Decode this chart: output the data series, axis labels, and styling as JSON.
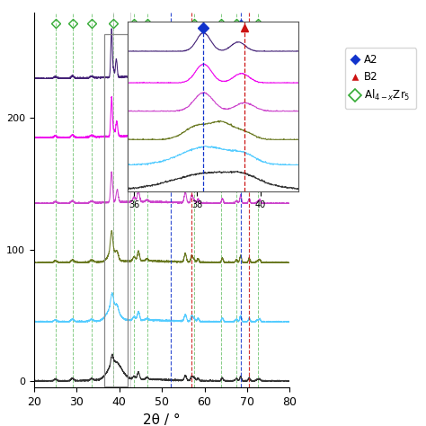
{
  "xlabel": "2θ / °",
  "xmin": 20,
  "xmax": 80,
  "line_colors": [
    "#333333",
    "#55ccff",
    "#6b7a23",
    "#cc44cc",
    "#ee00ee",
    "#442277"
  ],
  "offsets": [
    0,
    45,
    90,
    135,
    185,
    230
  ],
  "green_vlines": [
    25.0,
    29.0,
    33.5,
    38.5,
    43.5,
    46.5,
    57.5,
    64.0,
    67.5,
    72.5
  ],
  "blue_vline": 52.0,
  "blue_vline2": 68.5,
  "red_vline": 57.0,
  "red_vline2": 70.5,
  "gray_vlines": [
    38.5,
    42.5
  ],
  "inset_blue_vline": 38.2,
  "inset_red_vline": 39.5,
  "A2_color": "#1133cc",
  "B2_color": "#cc1111",
  "Al4xZr5_color": "#33aa33"
}
